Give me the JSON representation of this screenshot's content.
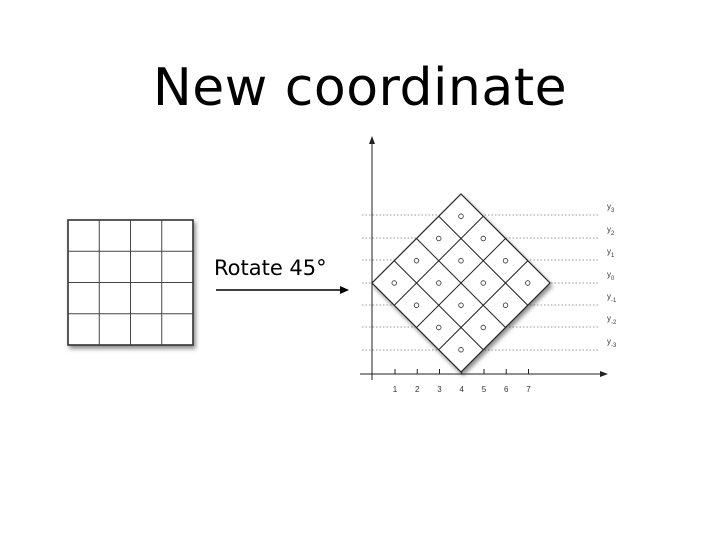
{
  "slide": {
    "title": "New coordinate",
    "arrow_label": "Rotate 45°"
  },
  "original_grid": {
    "rows": 4,
    "cols": 4
  },
  "rotated_diagram": {
    "x_axis_ticks": [
      "1",
      "2",
      "3",
      "4",
      "5",
      "6",
      "7"
    ],
    "y_axis_labels": [
      {
        "base": "y",
        "sub": "3"
      },
      {
        "base": "y",
        "sub": "2"
      },
      {
        "base": "y",
        "sub": "1"
      },
      {
        "base": "y",
        "sub": "0"
      },
      {
        "base": "y",
        "sub": "-1"
      },
      {
        "base": "y",
        "sub": "-2"
      },
      {
        "base": "y",
        "sub": "-3"
      }
    ],
    "grid_size": 4,
    "rotation_degrees": 45
  }
}
